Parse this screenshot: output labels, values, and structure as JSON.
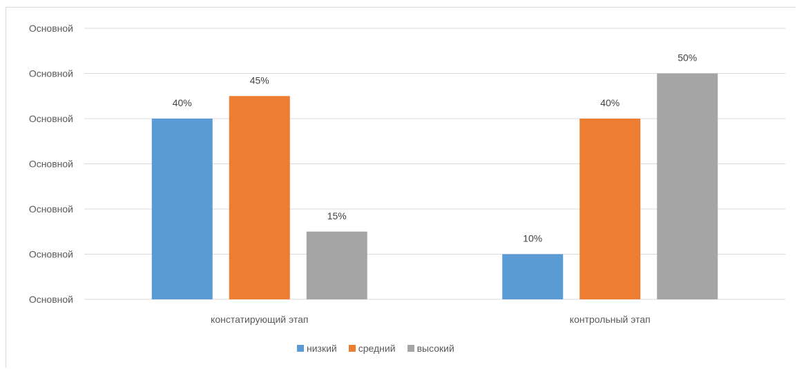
{
  "chart_data": {
    "type": "bar",
    "categories": [
      "констатирующий этап",
      "контрольный этап"
    ],
    "series": [
      {
        "name": "низкий",
        "values": [
          40,
          10
        ],
        "labels": [
          "40%",
          "10%"
        ],
        "color": "#5b9bd5"
      },
      {
        "name": "средний",
        "values": [
          45,
          40
        ],
        "labels": [
          "45%",
          "40%"
        ],
        "color": "#ed7d31"
      },
      {
        "name": "высокий",
        "values": [
          15,
          50
        ],
        "labels": [
          "15%",
          "50%"
        ],
        "color": "#a5a5a5"
      }
    ],
    "y_tick_labels": [
      "Основной",
      "Основной",
      "Основной",
      "Основной",
      "Основной",
      "Основной",
      "Основной"
    ],
    "ylim": [
      0,
      60
    ],
    "grid": true,
    "legend_position": "bottom",
    "xlabel": "",
    "ylabel": ""
  }
}
